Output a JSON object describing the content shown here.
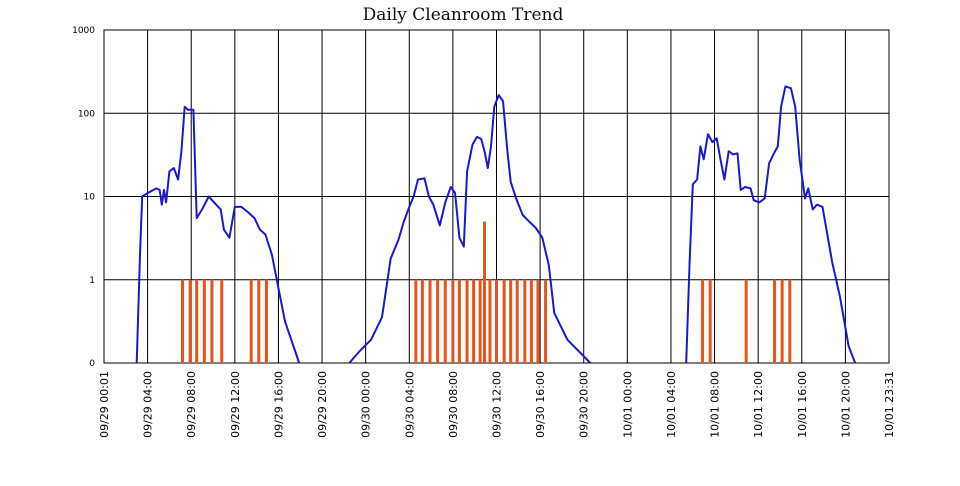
{
  "chart_data": {
    "type": "line",
    "title": "Daily Cleanroom Trend",
    "xlabel": "",
    "ylabel": "",
    "y_scale": "log",
    "ylim": [
      0,
      1000
    ],
    "y_ticks": [
      "1000",
      "100",
      "10",
      "1",
      "0"
    ],
    "x_range": [
      "09/29 00:01",
      "10/01 23:31"
    ],
    "x_ticks": [
      "09/29 00:01",
      "09/29 04:00",
      "09/29 08:00",
      "09/29 12:00",
      "09/29 16:00",
      "09/29 20:00",
      "09/30 00:00",
      "09/30 04:00",
      "09/30 08:00",
      "09/30 12:00",
      "09/30 16:00",
      "09/30 20:00",
      "10/01 00:00",
      "10/01 04:00",
      "10/01 08:00",
      "10/01 12:00",
      "10/01 16:00",
      "10/01 20:00",
      "10/01 23:31"
    ],
    "grid": true,
    "colors": {
      "line": "#1a1acc",
      "bars": "#e8541a",
      "grid": "#000000"
    },
    "series": [
      {
        "type": "line",
        "values": [
          [
            3.0,
            0
          ],
          [
            3.3,
            2
          ],
          [
            3.5,
            10
          ],
          [
            4.0,
            11
          ],
          [
            4.8,
            12.5
          ],
          [
            5.1,
            12
          ],
          [
            5.3,
            8
          ],
          [
            5.5,
            12
          ],
          [
            5.7,
            8.5
          ],
          [
            6.0,
            20
          ],
          [
            6.4,
            22
          ],
          [
            6.8,
            16
          ],
          [
            7.1,
            35
          ],
          [
            7.4,
            120
          ],
          [
            7.7,
            110
          ],
          [
            8.2,
            110
          ],
          [
            8.5,
            5.5
          ],
          [
            9.0,
            7
          ],
          [
            9.6,
            10
          ],
          [
            10.1,
            8.5
          ],
          [
            10.7,
            7
          ],
          [
            11.0,
            4
          ],
          [
            11.5,
            3.2
          ],
          [
            12.0,
            7.5
          ],
          [
            12.6,
            7.5
          ],
          [
            13.2,
            6.5
          ],
          [
            13.8,
            5.5
          ],
          [
            14.3,
            4
          ],
          [
            14.8,
            3.5
          ],
          [
            15.4,
            2
          ],
          [
            16.6,
            0.5
          ],
          [
            17.9,
            0
          ],
          [
            22.5,
            0
          ],
          [
            23.5,
            0.15
          ],
          [
            24.5,
            0.28
          ],
          [
            25.5,
            0.55
          ],
          [
            26.3,
            1.8
          ],
          [
            27.0,
            3
          ],
          [
            27.5,
            5
          ],
          [
            28.0,
            7.5
          ],
          [
            28.4,
            10
          ],
          [
            28.8,
            16
          ],
          [
            29.4,
            16.5
          ],
          [
            29.8,
            10
          ],
          [
            30.2,
            8
          ],
          [
            30.8,
            4.5
          ],
          [
            31.3,
            8.5
          ],
          [
            31.8,
            13
          ],
          [
            32.2,
            11
          ],
          [
            32.6,
            3.2
          ],
          [
            33.0,
            2.5
          ],
          [
            33.3,
            20
          ],
          [
            33.8,
            42
          ],
          [
            34.2,
            52
          ],
          [
            34.6,
            49
          ],
          [
            34.9,
            35
          ],
          [
            35.2,
            22
          ],
          [
            35.5,
            40
          ],
          [
            35.8,
            120
          ],
          [
            36.2,
            165
          ],
          [
            36.6,
            140
          ],
          [
            37.0,
            35
          ],
          [
            37.3,
            15
          ],
          [
            37.8,
            9.5
          ],
          [
            38.4,
            6
          ],
          [
            39.0,
            5
          ],
          [
            39.6,
            4.2
          ],
          [
            40.2,
            3.2
          ],
          [
            40.8,
            1.5
          ],
          [
            41.3,
            0.6
          ],
          [
            42.5,
            0.28
          ],
          [
            43.7,
            0.12
          ],
          [
            44.6,
            0
          ],
          [
            53.4,
            0
          ],
          [
            53.7,
            1.5
          ],
          [
            54.0,
            14
          ],
          [
            54.4,
            16
          ],
          [
            54.7,
            40
          ],
          [
            55.0,
            28
          ],
          [
            55.4,
            56
          ],
          [
            55.8,
            45
          ],
          [
            56.2,
            50
          ],
          [
            56.5,
            30
          ],
          [
            56.9,
            16
          ],
          [
            57.3,
            35
          ],
          [
            57.7,
            32
          ],
          [
            58.1,
            33
          ],
          [
            58.4,
            12
          ],
          [
            58.8,
            13
          ],
          [
            59.3,
            12.5
          ],
          [
            59.6,
            9
          ],
          [
            60.1,
            8.5
          ],
          [
            60.6,
            9.5
          ],
          [
            61.0,
            25
          ],
          [
            61.4,
            32
          ],
          [
            61.8,
            40
          ],
          [
            62.1,
            120
          ],
          [
            62.5,
            210
          ],
          [
            63.0,
            200
          ],
          [
            63.4,
            120
          ],
          [
            63.8,
            28
          ],
          [
            64.3,
            9.5
          ],
          [
            64.6,
            12.5
          ],
          [
            65.0,
            7
          ],
          [
            65.4,
            8
          ],
          [
            65.9,
            7.5
          ],
          [
            66.4,
            3.2
          ],
          [
            66.8,
            1.6
          ],
          [
            67.5,
            0.8
          ],
          [
            68.3,
            0.2
          ],
          [
            68.9,
            0
          ]
        ]
      },
      {
        "type": "bar",
        "values": [
          [
            7.2,
            1
          ],
          [
            7.9,
            1
          ],
          [
            8.5,
            1
          ],
          [
            9.2,
            1
          ],
          [
            9.9,
            1
          ],
          [
            10.8,
            1
          ],
          [
            13.5,
            1
          ],
          [
            14.2,
            1
          ],
          [
            14.9,
            1
          ],
          [
            28.6,
            1
          ],
          [
            29.2,
            1
          ],
          [
            29.9,
            1
          ],
          [
            30.6,
            1
          ],
          [
            31.3,
            1
          ],
          [
            32.0,
            1
          ],
          [
            32.6,
            1
          ],
          [
            33.3,
            1
          ],
          [
            33.9,
            1
          ],
          [
            34.5,
            1
          ],
          [
            34.9,
            5
          ],
          [
            35.4,
            1
          ],
          [
            36.0,
            1
          ],
          [
            36.7,
            1
          ],
          [
            37.3,
            1
          ],
          [
            37.9,
            1
          ],
          [
            38.6,
            1
          ],
          [
            39.2,
            1
          ],
          [
            39.8,
            1
          ],
          [
            40.5,
            1
          ],
          [
            54.9,
            1
          ],
          [
            55.6,
            1
          ],
          [
            58.9,
            1
          ],
          [
            61.5,
            1
          ],
          [
            62.2,
            1
          ],
          [
            62.9,
            1
          ]
        ]
      }
    ]
  }
}
